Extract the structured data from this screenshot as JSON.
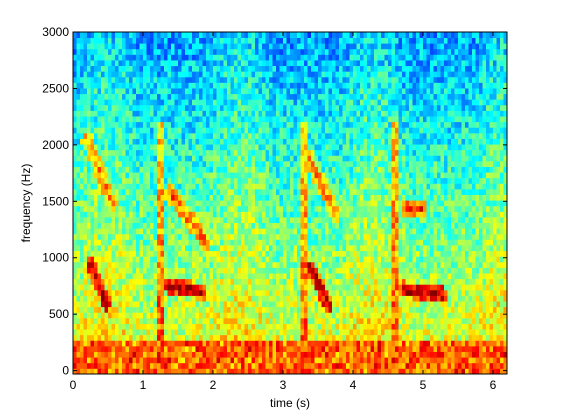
{
  "chart_data": {
    "type": "heatmap",
    "title": "",
    "xlabel": "time (s)",
    "ylabel": "frequency (Hz)",
    "xlim": [
      0,
      6.2
    ],
    "ylim": [
      -30,
      3000
    ],
    "x_ticks": [
      0,
      1,
      2,
      3,
      4,
      5,
      6
    ],
    "y_ticks": [
      0,
      500,
      1000,
      1500,
      2000,
      2500,
      3000
    ],
    "colormap": "jet",
    "grid": false,
    "legend": "none",
    "features": {
      "baseline_energy": {
        "freq_range": [
          0,
          250
        ],
        "level": 0.82
      },
      "vertical_onsets_s": [
        1.25,
        3.3,
        4.6
      ],
      "high_energy_blobs": [
        {
          "t": [
            0.25,
            0.48
          ],
          "f": [
            950,
            600
          ],
          "level": 0.96
        },
        {
          "t": [
            1.35,
            1.85
          ],
          "f": [
            760,
            700
          ],
          "level": 0.96
        },
        {
          "t": [
            3.4,
            3.65
          ],
          "f": [
            920,
            580
          ],
          "level": 0.96
        },
        {
          "t": [
            4.72,
            5.28
          ],
          "f": [
            720,
            680
          ],
          "level": 0.96
        },
        {
          "t": [
            4.75,
            5.0
          ],
          "f": [
            1440,
            1440
          ],
          "level": 0.86
        }
      ],
      "formant_sweeps": [
        {
          "t": [
            0.2,
            0.55
          ],
          "f": [
            2050,
            1500
          ],
          "level": 0.75
        },
        {
          "t": [
            1.4,
            1.9
          ],
          "f": [
            1560,
            1150
          ],
          "level": 0.78
        },
        {
          "t": [
            3.35,
            3.75
          ],
          "f": [
            1900,
            1400
          ],
          "level": 0.74
        }
      ]
    }
  },
  "colors": {
    "axis": "#000000",
    "background": "#ffffff"
  }
}
